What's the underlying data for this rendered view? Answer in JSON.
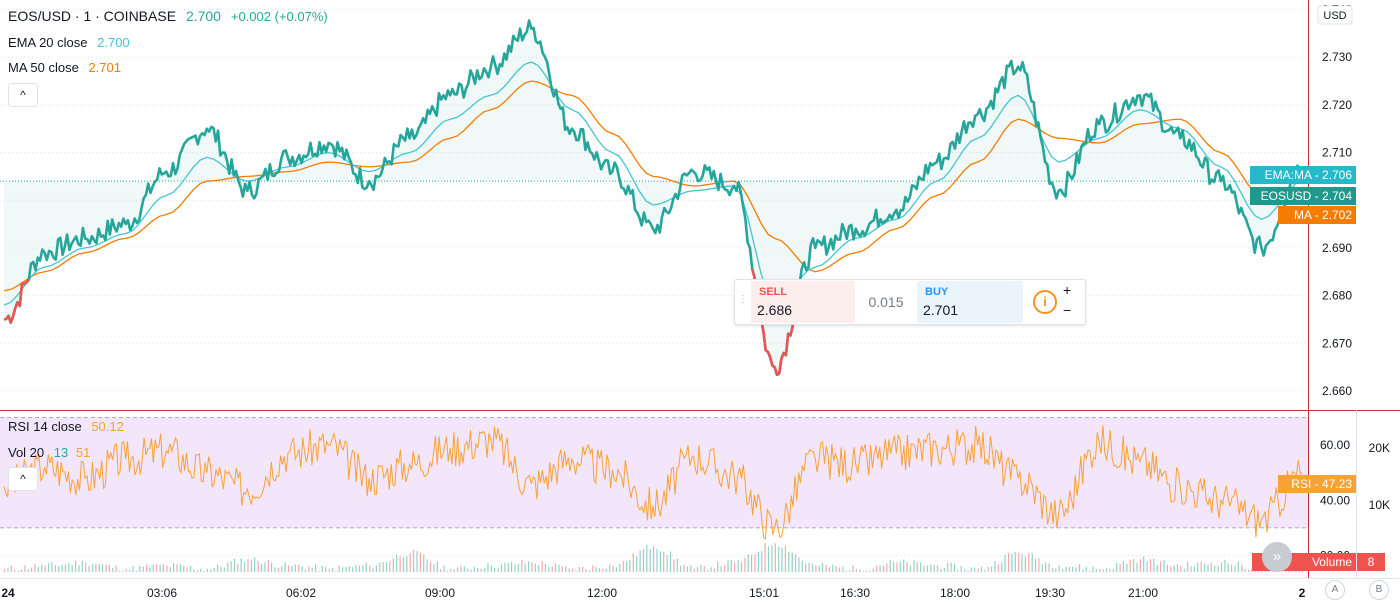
{
  "legend": {
    "symbol": "EOS/USD · 1 · COINBASE",
    "price": "2.700",
    "change": "+0.002 (+0.07%)",
    "ema_label": "EMA 20 close",
    "ema_value": "2.700",
    "ma_label": "MA 50 close",
    "ma_value": "2.701",
    "rsi_label": "RSI 14 close",
    "rsi_value": "50.12",
    "vol_label": "Vol 20",
    "vol_value1": "13",
    "vol_value2": "51"
  },
  "buttons": {
    "collapse": "^",
    "scroll": "»"
  },
  "trade": {
    "sell_label": "SELL",
    "sell_value": "2.686",
    "spread": "0.015",
    "buy_label": "BUY",
    "buy_value": "2.701",
    "plus": "+",
    "minus": "−",
    "info": "i"
  },
  "axis_tags": {
    "currency": "USD",
    "ema_ma": "EMA:MA - 2.706",
    "eosusd": "EOSUSD - 2.704",
    "ma": "MA - 2.702",
    "rsi": "RSI - 47.23",
    "volume": "Volume",
    "volume_count": "8",
    "scale_a": "A",
    "scale_b": "B"
  },
  "colors": {
    "up": "#26a69a",
    "down": "#ef5350",
    "ema": "#43c5d1",
    "ma": "#f57c00",
    "rsi": "#f7a234",
    "rsi_band": "#f3e6fb",
    "divider": "#c92c2c",
    "tag_ema_ma": "#26b9c9",
    "tag_eosusd": "#20998c",
    "tag_ma": "#f57c00",
    "tag_rsi": "#f7a234",
    "tag_volume": "#ef5350"
  },
  "chart_data": [
    {
      "type": "line",
      "name": "price",
      "x": [
        "00:00",
        "00:45",
        "01:30",
        "02:15",
        "03:00",
        "03:45",
        "04:30",
        "05:15",
        "06:00",
        "06:45",
        "07:30",
        "08:15",
        "09:00",
        "09:45",
        "10:30",
        "11:15",
        "12:00",
        "12:45",
        "13:30",
        "14:15",
        "15:00",
        "15:45",
        "16:30",
        "17:15",
        "18:00",
        "18:45",
        "19:30",
        "20:15",
        "21:00",
        "21:45",
        "22:30",
        "23:15",
        "23:59"
      ],
      "x_ticks": [
        "24",
        "03:06",
        "06:02",
        "09:00",
        "12:00",
        "15:01",
        "16:30",
        "18:00",
        "19:30",
        "21:00",
        "2"
      ],
      "series": [
        {
          "name": "EOS/USD",
          "values": [
            2.675,
            2.689,
            2.692,
            2.695,
            2.706,
            2.715,
            2.702,
            2.709,
            2.712,
            2.704,
            2.713,
            2.722,
            2.728,
            2.736,
            2.715,
            2.706,
            2.694,
            2.706,
            2.703,
            2.665,
            2.69,
            2.694,
            2.698,
            2.708,
            2.718,
            2.728,
            2.702,
            2.716,
            2.722,
            2.713,
            2.704,
            2.69,
            2.707
          ]
        },
        {
          "name": "EMA 20 close",
          "values": [
            2.678,
            2.686,
            2.69,
            2.693,
            2.701,
            2.709,
            2.704,
            2.707,
            2.71,
            2.706,
            2.71,
            2.717,
            2.722,
            2.729,
            2.719,
            2.71,
            2.699,
            2.702,
            2.703,
            2.678,
            2.686,
            2.692,
            2.696,
            2.704,
            2.713,
            2.722,
            2.708,
            2.713,
            2.719,
            2.715,
            2.707,
            2.696,
            2.704
          ]
        },
        {
          "name": "MA 50 close",
          "values": [
            2.681,
            2.685,
            2.689,
            2.692,
            2.697,
            2.704,
            2.705,
            2.706,
            2.708,
            2.707,
            2.708,
            2.713,
            2.719,
            2.725,
            2.722,
            2.714,
            2.705,
            2.703,
            2.704,
            2.692,
            2.685,
            2.689,
            2.694,
            2.701,
            2.708,
            2.717,
            2.713,
            2.712,
            2.716,
            2.717,
            2.71,
            2.701,
            2.702
          ]
        }
      ],
      "y_ticks": [
        "2.740",
        "2.730",
        "2.720",
        "2.710",
        "2.700",
        "2.690",
        "2.680",
        "2.670",
        "2.660"
      ],
      "ylim": [
        2.656,
        2.742
      ],
      "last_price_line": 2.704
    },
    {
      "type": "line",
      "name": "rsi",
      "series": [
        {
          "name": "RSI 14 close",
          "values": [
            45,
            52,
            48,
            55,
            58,
            50,
            44,
            57,
            60,
            48,
            53,
            59,
            62,
            46,
            55,
            51,
            38,
            56,
            49,
            30,
            55,
            53,
            57,
            59,
            60,
            48,
            35,
            61,
            54,
            45,
            40,
            33,
            50
          ]
        }
      ],
      "y_ticks": [
        "60.00",
        "40.00",
        "20.00"
      ],
      "ylim": [
        14,
        72
      ],
      "band": [
        30,
        70
      ]
    },
    {
      "type": "bar",
      "name": "volume",
      "y_ticks": [
        "20K",
        "10K"
      ],
      "values": [
        1,
        2,
        3,
        1,
        2,
        1,
        4,
        2,
        1,
        2,
        6,
        1,
        2,
        3,
        1,
        2,
        8,
        1,
        3,
        9,
        2,
        1,
        3,
        2,
        1,
        6,
        2,
        1,
        4,
        2,
        3,
        1,
        2
      ]
    }
  ]
}
